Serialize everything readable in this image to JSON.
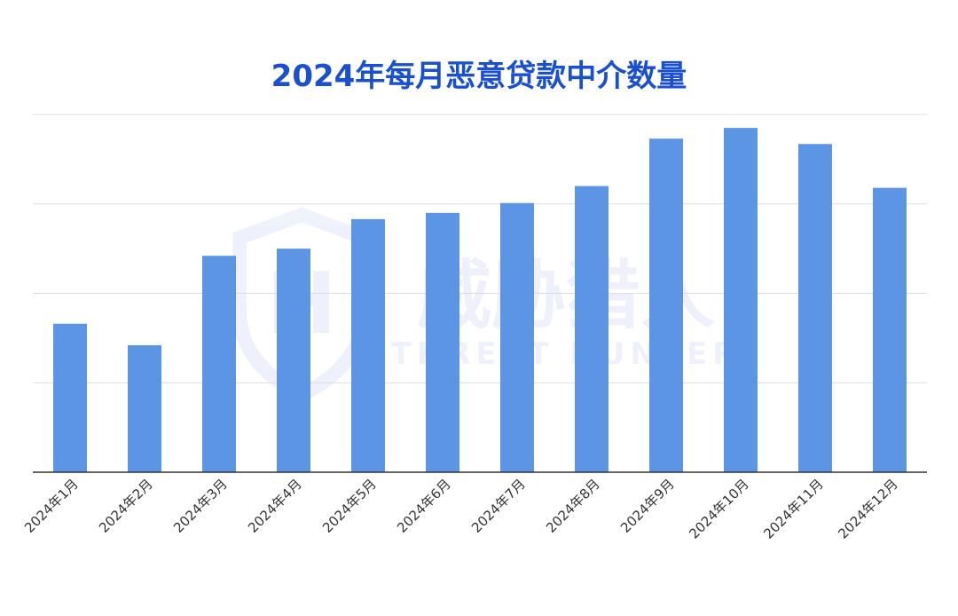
{
  "chart_data": {
    "type": "bar",
    "title": "2024年每月恶意贷款中介数量",
    "categories": [
      "2024年1月",
      "2024年2月",
      "2024年3月",
      "2024年4月",
      "2024年5月",
      "2024年6月",
      "2024年7月",
      "2024年8月",
      "2024年9月",
      "2024年10月",
      "2024年11月",
      "2024年12月"
    ],
    "values": [
      1.66,
      1.42,
      2.42,
      2.5,
      2.83,
      2.9,
      3.01,
      3.2,
      3.73,
      3.85,
      3.67,
      3.18
    ],
    "ylim": [
      0,
      4
    ],
    "grid": true,
    "xlabel": "",
    "ylabel": "",
    "bar_color": "#5b95e3"
  },
  "watermark": {
    "cn_text": "威胁猎人",
    "en_text": "THREAT HUNTER",
    "logo_letter": "H"
  }
}
